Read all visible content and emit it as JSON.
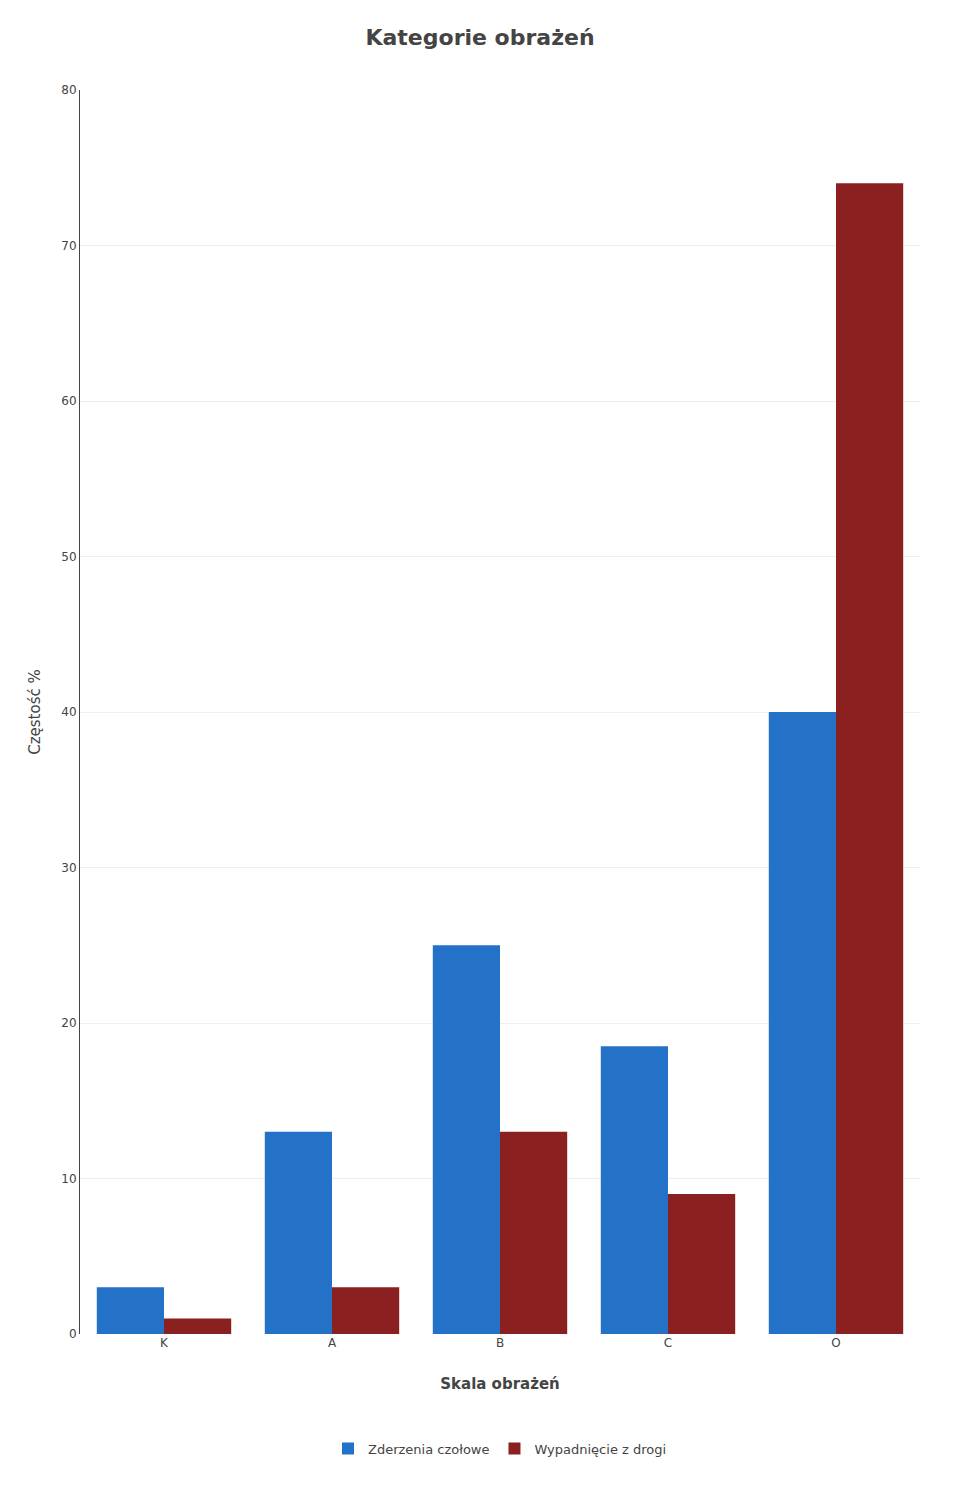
{
  "chart_data": {
    "type": "bar",
    "title": "Kategorie obrażeń",
    "categories": [
      "K",
      "A",
      "B",
      "C",
      "O"
    ],
    "series": [
      {
        "name": "Zderzenia czołowe",
        "color": "#2472C8",
        "values": [
          3,
          13,
          25,
          18.5,
          40
        ]
      },
      {
        "name": "Wypadnięcie z drogi",
        "color": "#8B2020",
        "values": [
          1,
          3,
          13,
          9,
          74
        ]
      }
    ],
    "ylabel": "Częstość %",
    "xlabel": "Skala obrażeń",
    "ylim": [
      0,
      80
    ],
    "yticks": [
      0,
      10,
      20,
      30,
      40,
      50,
      60,
      70,
      80
    ],
    "grid": true,
    "legend": "bottom"
  }
}
